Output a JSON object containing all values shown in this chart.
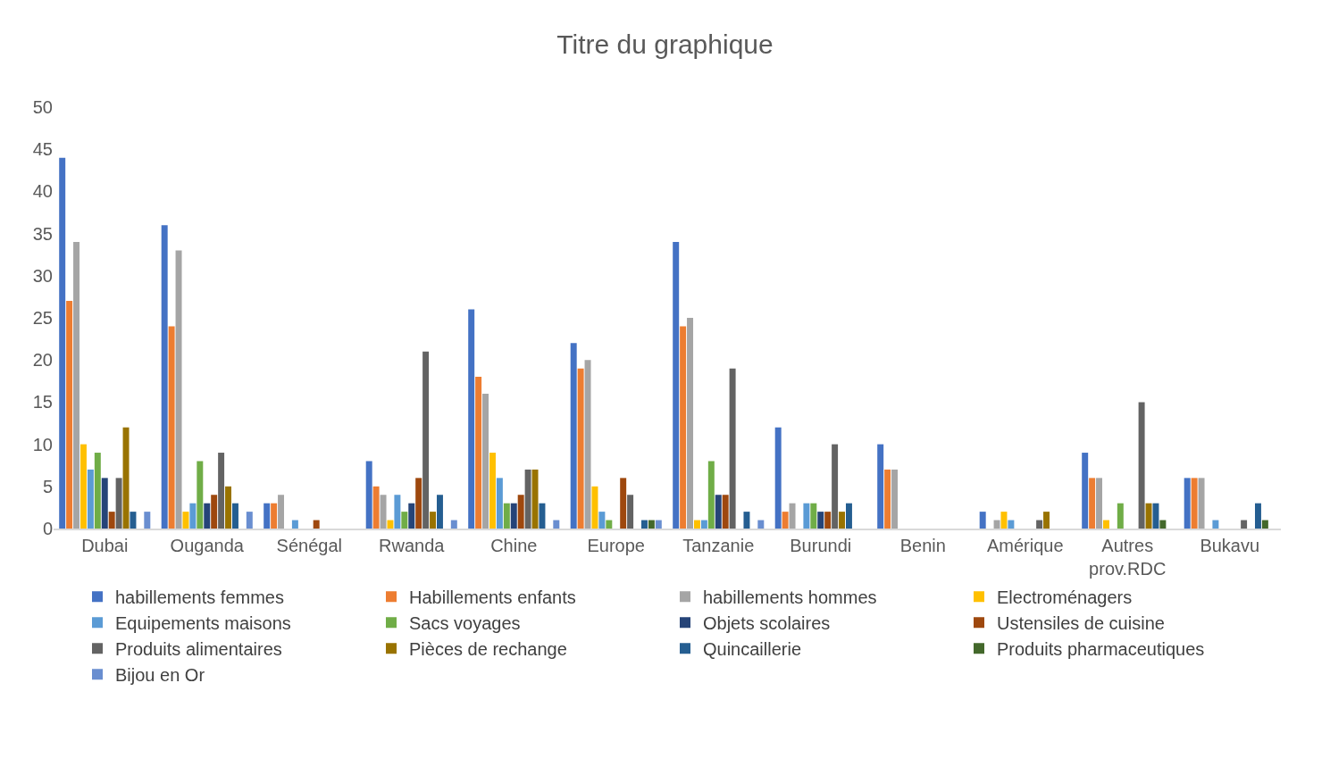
{
  "chart_data": {
    "type": "bar",
    "title": "Titre du graphique",
    "categories": [
      "Dubai",
      "Ouganda",
      "Sénégal",
      "Rwanda",
      "Chine",
      "Europe",
      "Tanzanie",
      "Burundi",
      "Benin",
      "Amérique",
      "Autres prov.RDC",
      "Bukavu"
    ],
    "series": [
      {
        "name": "habillements femmes",
        "color": "#4472c4",
        "values": [
          44,
          36,
          3,
          8,
          26,
          22,
          34,
          12,
          10,
          2,
          9,
          6
        ]
      },
      {
        "name": "Habillements enfants",
        "color": "#ed7d31",
        "values": [
          27,
          24,
          3,
          5,
          18,
          19,
          24,
          2,
          7,
          null,
          6,
          6
        ]
      },
      {
        "name": "habillements hommes",
        "color": "#a5a5a5",
        "values": [
          34,
          33,
          4,
          4,
          16,
          20,
          25,
          3,
          7,
          1,
          6,
          6
        ]
      },
      {
        "name": "Electroménagers",
        "color": "#ffc000",
        "values": [
          10,
          2,
          null,
          1,
          9,
          5,
          1,
          null,
          null,
          2,
          1,
          null
        ]
      },
      {
        "name": "Equipements maisons",
        "color": "#5b9bd5",
        "values": [
          7,
          3,
          1,
          4,
          6,
          2,
          1,
          3,
          null,
          1,
          null,
          1
        ]
      },
      {
        "name": "Sacs voyages",
        "color": "#70ad47",
        "values": [
          9,
          8,
          null,
          2,
          3,
          1,
          8,
          3,
          null,
          null,
          3,
          null
        ]
      },
      {
        "name": "Objets scolaires",
        "color": "#264478",
        "values": [
          6,
          3,
          null,
          3,
          3,
          null,
          4,
          2,
          null,
          null,
          null,
          null
        ]
      },
      {
        "name": "Ustensiles de cuisine",
        "color": "#9e480e",
        "values": [
          2,
          4,
          1,
          6,
          4,
          6,
          4,
          2,
          null,
          null,
          null,
          null
        ]
      },
      {
        "name": "Produits alimentaires",
        "color": "#636363",
        "values": [
          6,
          9,
          null,
          21,
          7,
          4,
          19,
          10,
          null,
          1,
          15,
          1
        ]
      },
      {
        "name": "Pièces de rechange",
        "color": "#997300",
        "values": [
          12,
          5,
          null,
          2,
          7,
          null,
          null,
          2,
          null,
          2,
          3,
          null
        ]
      },
      {
        "name": "Quincaillerie",
        "color": "#255e91",
        "values": [
          2,
          3,
          null,
          4,
          3,
          1,
          2,
          3,
          null,
          null,
          3,
          3
        ]
      },
      {
        "name": "Produits pharmaceutiques",
        "color": "#43682b",
        "values": [
          null,
          null,
          null,
          null,
          null,
          1,
          null,
          null,
          null,
          null,
          1,
          1
        ]
      },
      {
        "name": "Bijou en Or",
        "color": "#698ed0",
        "values": [
          2,
          2,
          null,
          1,
          1,
          1,
          1,
          null,
          null,
          null,
          null,
          null
        ]
      }
    ],
    "ylim": [
      0,
      50
    ],
    "yticks": [
      0,
      5,
      10,
      15,
      20,
      25,
      30,
      35,
      40,
      45,
      50
    ],
    "grid": false,
    "legend": "bottom"
  }
}
